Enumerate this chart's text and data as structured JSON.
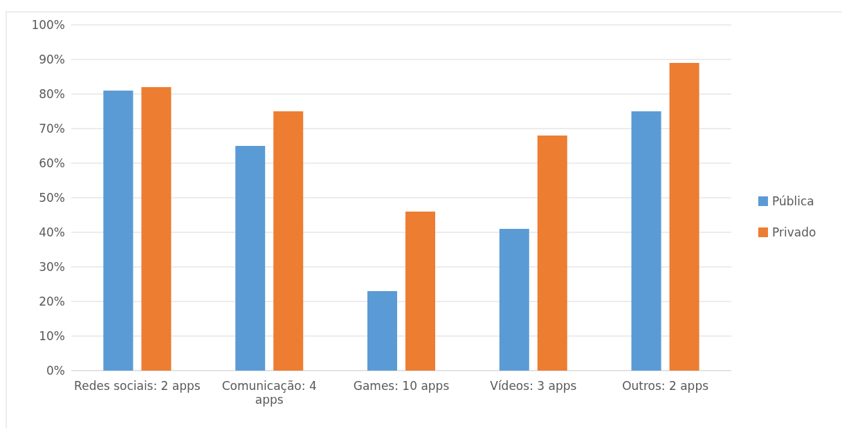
{
  "chart_data": {
    "type": "bar",
    "categories": [
      "Redes sociais: 2 apps",
      "Comunicação: 4 apps",
      "Games: 10 apps",
      "Vídeos: 3 apps",
      "Outros: 2 apps"
    ],
    "series": [
      {
        "name": "Pública",
        "color": "#5b9bd5",
        "values": [
          81,
          65,
          23,
          41,
          75
        ]
      },
      {
        "name": "Privado",
        "color": "#ed7d31",
        "values": [
          82,
          75,
          46,
          68,
          89
        ]
      }
    ],
    "ylim": [
      0,
      100
    ],
    "yticks": [
      {
        "value": 0,
        "label": "0%"
      },
      {
        "value": 10,
        "label": "10%"
      },
      {
        "value": 20,
        "label": "20%"
      },
      {
        "value": 30,
        "label": "30%"
      },
      {
        "value": 40,
        "label": "40%"
      },
      {
        "value": 50,
        "label": "50%"
      },
      {
        "value": 60,
        "label": "60%"
      },
      {
        "value": 70,
        "label": "70%"
      },
      {
        "value": 80,
        "label": "80%"
      },
      {
        "value": 90,
        "label": "90%"
      },
      {
        "value": 100,
        "label": "100%"
      }
    ],
    "grid": "y",
    "legend": "right"
  }
}
